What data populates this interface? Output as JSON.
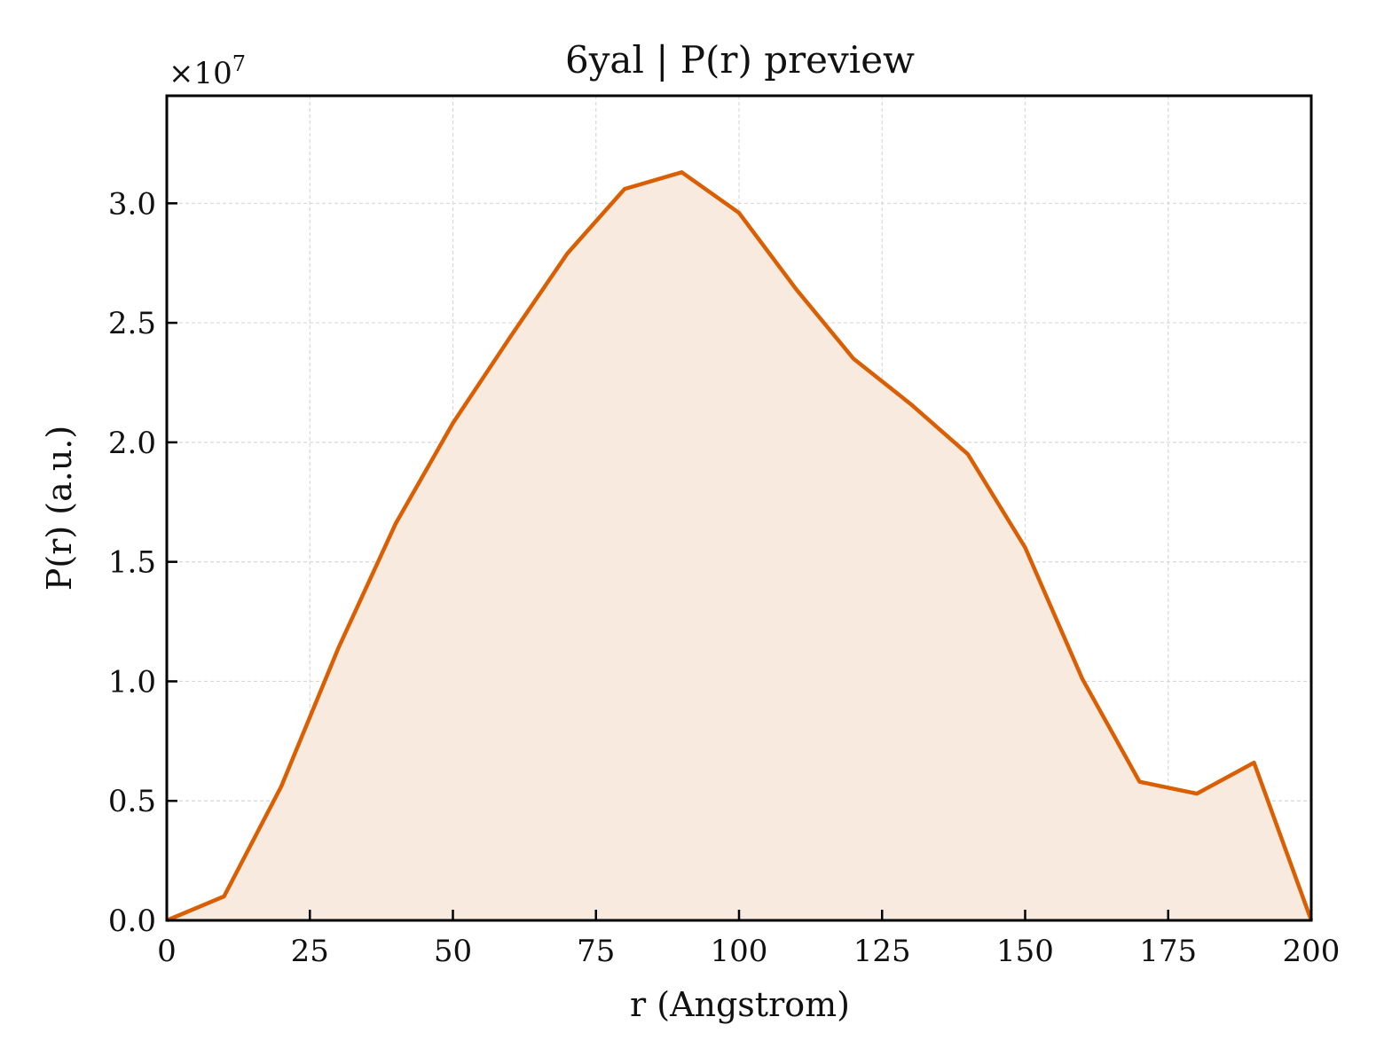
{
  "chart_data": {
    "type": "area",
    "title": "6yal | P(r) preview",
    "xlabel": "r (Angstrom)",
    "ylabel": "P(r) (a.u.)",
    "y_offset_label": "×10",
    "y_offset_exponent": "7",
    "xlim": [
      0,
      200
    ],
    "ylim": [
      0,
      3.45
    ],
    "x_ticks": [
      0,
      25,
      50,
      75,
      100,
      125,
      150,
      175,
      200
    ],
    "x_tick_labels": [
      "0",
      "25",
      "50",
      "75",
      "100",
      "125",
      "150",
      "175",
      "200"
    ],
    "y_ticks": [
      0,
      0.5,
      1.0,
      1.5,
      2.0,
      2.5,
      3.0
    ],
    "y_tick_labels": [
      "0.0",
      "0.5",
      "1.0",
      "1.5",
      "2.0",
      "2.5",
      "3.0"
    ],
    "grid": true,
    "line_color": "#d95f02",
    "fill_color": "#f9eadf",
    "series": [
      {
        "x": [
          0,
          10,
          20,
          30,
          40,
          50,
          60,
          70,
          80,
          90,
          100,
          110,
          120,
          130,
          140,
          150,
          160,
          170,
          180,
          190,
          200
        ],
        "values": [
          0.0,
          0.1,
          0.56,
          1.14,
          1.66,
          2.08,
          2.44,
          2.79,
          3.06,
          3.13,
          2.96,
          2.64,
          2.35,
          2.16,
          1.95,
          1.56,
          1.01,
          0.58,
          0.53,
          0.66,
          0.0
        ]
      }
    ]
  }
}
